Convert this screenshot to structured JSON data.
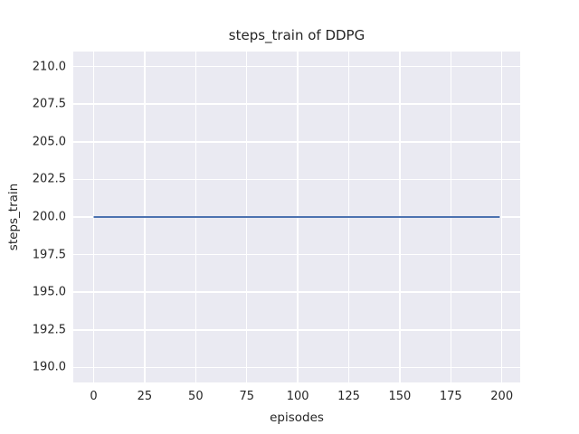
{
  "chart_data": {
    "type": "line",
    "title": "steps_train of DDPG",
    "xlabel": "episodes",
    "ylabel": "steps_train",
    "xlim": [
      -10,
      209
    ],
    "ylim": [
      189,
      211
    ],
    "x_ticks": [
      0,
      25,
      50,
      75,
      100,
      125,
      150,
      175,
      200
    ],
    "x_tick_labels": [
      "0",
      "25",
      "50",
      "75",
      "100",
      "125",
      "150",
      "175",
      "200"
    ],
    "y_ticks": [
      190.0,
      192.5,
      195.0,
      197.5,
      200.0,
      202.5,
      205.0,
      207.5,
      210.0
    ],
    "y_tick_labels": [
      "190.0",
      "192.5",
      "195.0",
      "197.5",
      "200.0",
      "202.5",
      "205.0",
      "207.5",
      "210.0"
    ],
    "grid": true,
    "legend": "none",
    "plot_background": "#eaeaf2",
    "grid_color": "#ffffff",
    "text_color": "#262626",
    "series": [
      {
        "name": "steps_train",
        "color": "#4c72b0",
        "line_width": 2,
        "description": "constant value 200 for every episode from 0 to 199",
        "x": [
          0,
          199
        ],
        "y": [
          200,
          200
        ]
      }
    ]
  }
}
